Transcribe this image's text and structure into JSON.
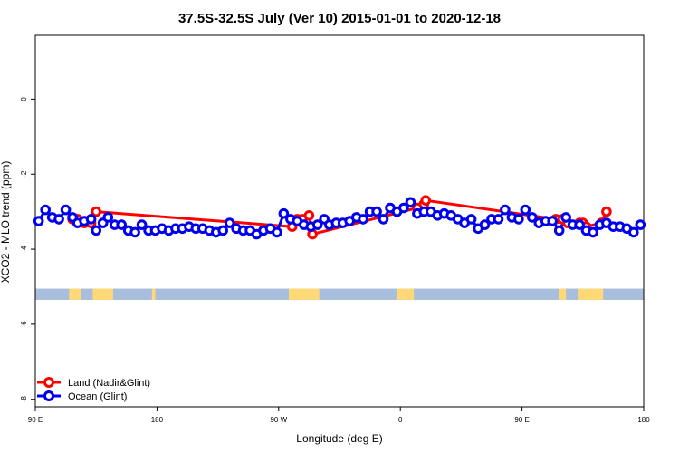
{
  "chart_data": {
    "type": "line",
    "title": "37.5S-32.5S July (Ver 10)   2015-01-01 to 2020-12-18",
    "xlabel": "Longitude (deg E)",
    "ylabel": "XCO2 - MLO trend (ppm)",
    "xlim": [
      90,
      450
    ],
    "ylim": [
      -8.2,
      1.7
    ],
    "x_ticks": [
      90,
      162,
      234,
      306,
      378,
      450
    ],
    "x_tick_labels": [
      "90 E",
      "180",
      "90 W",
      "0",
      "90 E",
      "180"
    ],
    "y_ticks": [
      0,
      -2,
      -4,
      -6,
      -8
    ],
    "y_tick_labels": [
      "0",
      "-2",
      "-4",
      "-6",
      "-8"
    ],
    "grid": false,
    "legend_position": "bottom-left",
    "colors": {
      "land": "#ff0000",
      "ocean": "#0000ee",
      "map_ocean": "#a9bedd",
      "map_land": "#ffd978"
    },
    "map_strip": {
      "y_range": [
        -5.05,
        -5.35
      ],
      "land_segments": [
        [
          110,
          117
        ],
        [
          124,
          136
        ],
        [
          159,
          161
        ],
        [
          240,
          258
        ],
        [
          304,
          314
        ],
        [
          400,
          404
        ],
        [
          411,
          426
        ]
      ]
    },
    "series": [
      {
        "name": "Land (Nadir&Glint)",
        "color": "#ff0000",
        "x": [
          112,
          115,
          119,
          123,
          126,
          242,
          245,
          248,
          252,
          254,
          316,
          320,
          321,
          398,
          402,
          405,
          412,
          414,
          416,
          425,
          428
        ],
        "y": [
          -3.2,
          -3.2,
          -3.3,
          -3.3,
          -3.0,
          -3.4,
          -3.2,
          -3.2,
          -3.1,
          -3.6,
          -2.9,
          -2.8,
          -2.7,
          -3.2,
          -3.2,
          -3.3,
          -3.3,
          -3.3,
          -3.4,
          -3.3,
          -3.0
        ]
      },
      {
        "name": "Ocean (Glint)",
        "color": "#0000ee",
        "x": [
          92,
          96,
          100,
          104,
          108,
          112,
          115,
          119,
          123,
          126,
          130,
          133,
          137,
          141,
          145,
          149,
          153,
          157,
          161,
          165,
          169,
          173,
          177,
          181,
          185,
          189,
          193,
          197,
          201,
          205,
          209,
          213,
          217,
          221,
          225,
          229,
          233,
          237,
          241,
          245,
          249,
          253,
          257,
          261,
          264,
          268,
          272,
          276,
          280,
          284,
          288,
          292,
          296,
          300,
          304,
          308,
          312,
          316,
          320,
          324,
          328,
          332,
          336,
          340,
          344,
          348,
          352,
          356,
          360,
          364,
          368,
          372,
          376,
          380,
          384,
          388,
          392,
          396,
          400,
          404,
          408,
          412,
          416,
          420,
          424,
          428,
          432,
          436,
          440,
          444,
          448
        ],
        "y": [
          -3.25,
          -2.95,
          -3.15,
          -3.2,
          -2.95,
          -3.15,
          -3.3,
          -3.25,
          -3.2,
          -3.5,
          -3.3,
          -3.15,
          -3.35,
          -3.35,
          -3.5,
          -3.55,
          -3.35,
          -3.5,
          -3.5,
          -3.45,
          -3.5,
          -3.45,
          -3.45,
          -3.4,
          -3.45,
          -3.45,
          -3.5,
          -3.55,
          -3.5,
          -3.3,
          -3.45,
          -3.5,
          -3.5,
          -3.6,
          -3.5,
          -3.45,
          -3.55,
          -3.05,
          -3.2,
          -3.25,
          -3.35,
          -3.4,
          -3.35,
          -3.2,
          -3.35,
          -3.3,
          -3.3,
          -3.25,
          -3.15,
          -3.2,
          -3.0,
          -3.0,
          -3.2,
          -2.9,
          -3.0,
          -2.9,
          -2.75,
          -3.05,
          -3.0,
          -3.0,
          -3.1,
          -3.05,
          -3.1,
          -3.2,
          -3.3,
          -3.2,
          -3.45,
          -3.35,
          -3.2,
          -3.2,
          -2.95,
          -3.15,
          -3.2,
          -2.95,
          -3.15,
          -3.3,
          -3.25,
          -3.25,
          -3.5,
          -3.15,
          -3.35,
          -3.35,
          -3.5,
          -3.55,
          -3.35,
          -3.3,
          -3.4,
          -3.4,
          -3.45,
          -3.55,
          -3.35
        ]
      }
    ]
  }
}
